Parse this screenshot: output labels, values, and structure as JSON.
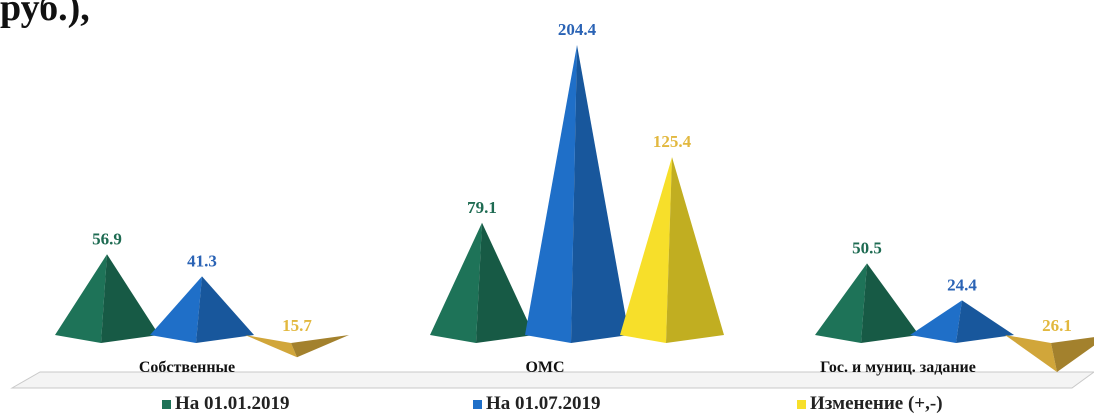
{
  "header_fragment": "руб.),",
  "chart_data": {
    "type": "bar",
    "title": "",
    "categories": [
      "Собственные",
      "ОМС",
      "Гос. и муниц. задание"
    ],
    "series": [
      {
        "name": "На 01.01.2019",
        "values": [
          56.9,
          79.1,
          50.5
        ],
        "labels": [
          "56.9",
          "79.1",
          "50.5"
        ]
      },
      {
        "name": "На 01.07.2019",
        "values": [
          41.3,
          204.4,
          24.4
        ],
        "labels": [
          "41.3",
          "204.4",
          "24.4"
        ]
      },
      {
        "name": "Изменение (+,-)",
        "values": [
          -15.7,
          125.4,
          -26.1
        ],
        "labels": [
          "15.7",
          "125.4",
          "26.1"
        ]
      }
    ],
    "colors": [
      "#1e7358",
      "#1f6fc8",
      "#f7df2a"
    ],
    "negative_color": "#d1a63a",
    "label_colors": [
      "#1e6b52",
      "#2a63b5",
      "#e2b83f"
    ],
    "mark_shape": "pyramid",
    "ylim": [
      -30,
      210
    ],
    "grid": false,
    "legend_position": "bottom"
  }
}
